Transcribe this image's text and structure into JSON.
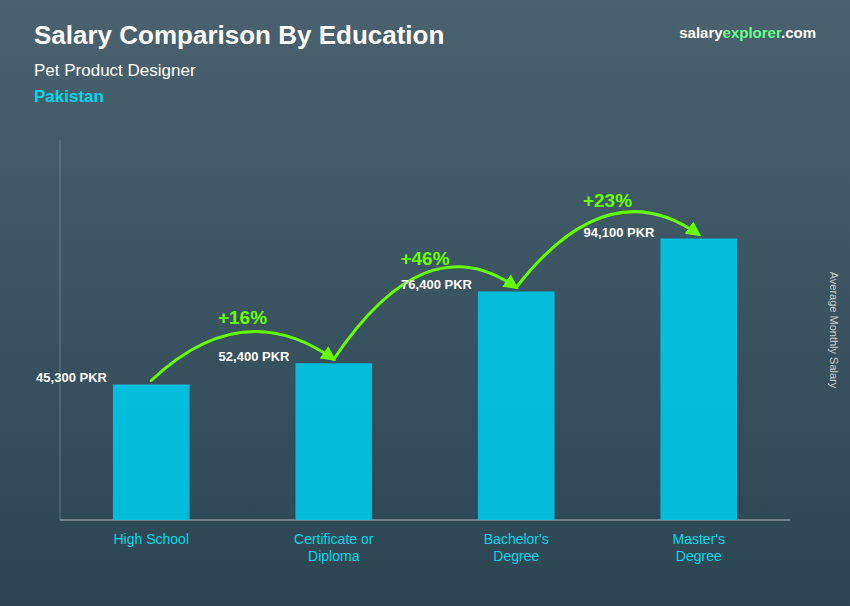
{
  "chart_data": {
    "type": "bar",
    "title": "Salary Comparison By Education",
    "subtitle": "Pet Product Designer",
    "country": "Pakistan",
    "watermark": [
      "salary",
      "explorer",
      ".com"
    ],
    "ylabel": "Average Monthly Salary",
    "categories": [
      "High School",
      "Certificate or\nDiploma",
      "Bachelor's\nDegree",
      "Master's\nDegree"
    ],
    "values": [
      45300,
      52400,
      76400,
      94100
    ],
    "value_labels": [
      "45,300 PKR",
      "52,400 PKR",
      "76,400 PKR",
      "94,100 PKR"
    ],
    "annotations": [
      "+16%",
      "+46%",
      "+23%"
    ],
    "color": "#00c8e8",
    "ylim": [
      0,
      127035
    ],
    "data_labels": true,
    "tick_labels": "x",
    "grid": false
  }
}
